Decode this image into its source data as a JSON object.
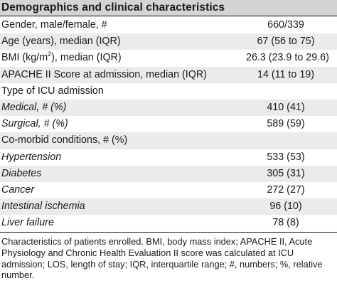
{
  "table": {
    "title": "Demographics and clinical characteristics",
    "rows": [
      {
        "label": "Gender, male/female, #",
        "value": "660/339",
        "italic": false
      },
      {
        "label": "Age (years), median (IQR)",
        "value": "67 (56 to 75)",
        "italic": false
      },
      {
        "label_pre": "BMI (kg/m",
        "label_sup": "2",
        "label_post": "), median (IQR)",
        "value": "26.3 (23.9 to 29.6)",
        "italic": false
      },
      {
        "label": "APACHE II Score at admission, median (IQR)",
        "value": "14 (11 to 19)",
        "italic": false
      },
      {
        "label": "Type of ICU admission",
        "value": "",
        "italic": false
      },
      {
        "label": "Medical, # (%)",
        "value": "410 (41)",
        "italic": true
      },
      {
        "label": "Surgical, # (%)",
        "value": "589 (59)",
        "italic": true
      },
      {
        "label": "Co-morbid conditions, # (%)",
        "value": "",
        "italic": false
      },
      {
        "label": "Hypertension",
        "value": "533 (53)",
        "italic": true
      },
      {
        "label": "Diabetes",
        "value": "305 (31)",
        "italic": true
      },
      {
        "label": "Cancer",
        "value": "272 (27)",
        "italic": true
      },
      {
        "label": "Intestinal ischemia",
        "value": "96 (10)",
        "italic": true
      },
      {
        "label": "Liver failure",
        "value": "78 (8)",
        "italic": true
      }
    ],
    "footnote": "Characteristics of patients enrolled. BMI, body mass index; APACHE II, Acute Physiology and Chronic Health Evaluation II score was calculated at ICU admission; LOS, length of stay; IQR, interquartile range; #, numbers; %, relative number."
  }
}
